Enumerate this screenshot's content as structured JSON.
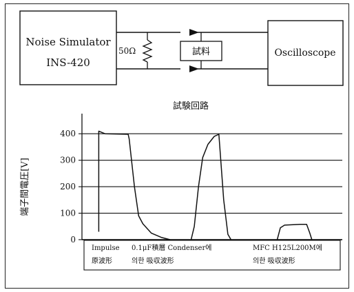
{
  "circuit": {
    "noise_simulator": {
      "line1": "Noise Simulator",
      "line2": "INS-420"
    },
    "resistor_label": "50Ω",
    "sample_label": "試料",
    "oscilloscope_label": "Oscilloscope",
    "caption": "試験回路"
  },
  "chart_data": {
    "type": "line",
    "ylabel": "端子間電圧[V]",
    "ylim": [
      0,
      450
    ],
    "yticks": [
      0,
      100,
      200,
      300,
      400
    ],
    "grid": true,
    "series": [
      {
        "name": "Impulse 原波形",
        "points": [
          [
            0.0,
            30
          ],
          [
            0.0,
            410
          ],
          [
            0.3,
            400
          ],
          [
            1.4,
            398
          ],
          [
            1.45,
            380
          ],
          [
            1.7,
            200
          ],
          [
            1.9,
            90
          ],
          [
            2.1,
            60
          ],
          [
            2.5,
            25
          ],
          [
            3.0,
            8
          ],
          [
            3.4,
            0
          ]
        ]
      },
      {
        "name": "0.1μF積層 Condenser에 의한 吸収波形",
        "points": [
          [
            4.4,
            0
          ],
          [
            4.55,
            50
          ],
          [
            4.75,
            200
          ],
          [
            4.95,
            310
          ],
          [
            5.2,
            360
          ],
          [
            5.5,
            390
          ],
          [
            5.72,
            398
          ],
          [
            5.95,
            150
          ],
          [
            6.15,
            20
          ],
          [
            6.3,
            0
          ]
        ]
      },
      {
        "name": "MFC H125L200M에 의한 吸収波形",
        "points": [
          [
            8.5,
            0
          ],
          [
            8.65,
            45
          ],
          [
            8.85,
            55
          ],
          [
            9.6,
            58
          ],
          [
            9.9,
            58
          ],
          [
            10.05,
            25
          ],
          [
            10.15,
            0
          ]
        ]
      }
    ],
    "annotations": [
      {
        "line1": "Impulse",
        "line2": "原波形"
      },
      {
        "line1": "0.1μF積層 Condenser에",
        "line2": "의한 吸収波形"
      },
      {
        "line1": "MFC H125L200M에",
        "line2": "의한 吸収波形"
      }
    ]
  }
}
